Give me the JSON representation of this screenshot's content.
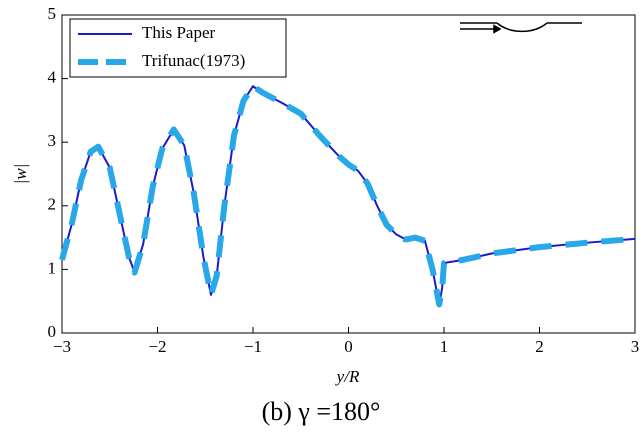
{
  "chart_data": {
    "type": "line",
    "title": "(b)  γ =180°",
    "xlabel": "y/R",
    "ylabel": "|w|",
    "x": [
      -3,
      -2.9,
      -2.8,
      -2.7,
      -2.62,
      -2.5,
      -2.4,
      -2.3,
      -2.24,
      -2.15,
      -2.05,
      -1.95,
      -1.83,
      -1.72,
      -1.62,
      -1.52,
      -1.44,
      -1.38,
      -1.3,
      -1.2,
      -1.1,
      -1.0,
      -0.9,
      -0.7,
      -0.5,
      -0.3,
      -0.1,
      0,
      0.1,
      0.2,
      0.3,
      0.4,
      0.5,
      0.6,
      0.7,
      0.8,
      0.88,
      0.95,
      0.98,
      1.0,
      1.2,
      1.5,
      2.0,
      2.5,
      3.0
    ],
    "series": [
      {
        "name": "This Paper",
        "color": "#1a1ad0",
        "linestyle": "solid",
        "values": [
          1.15,
          1.7,
          2.4,
          2.85,
          2.93,
          2.6,
          1.9,
          1.2,
          0.95,
          1.4,
          2.3,
          2.9,
          3.2,
          2.95,
          2.2,
          1.2,
          0.6,
          0.9,
          2.0,
          3.1,
          3.65,
          3.88,
          3.78,
          3.62,
          3.45,
          3.1,
          2.78,
          2.65,
          2.55,
          2.35,
          2.0,
          1.7,
          1.55,
          1.47,
          1.5,
          1.45,
          1.0,
          0.45,
          0.7,
          1.1,
          1.15,
          1.25,
          1.35,
          1.42,
          1.48
        ]
      },
      {
        "name": "Trifunac(1973)",
        "color": "#29a8e8",
        "linestyle": "dashed",
        "values": [
          1.15,
          1.7,
          2.4,
          2.85,
          2.93,
          2.6,
          1.9,
          1.2,
          0.95,
          1.4,
          2.3,
          2.9,
          3.2,
          2.95,
          2.2,
          1.2,
          0.6,
          0.9,
          2.0,
          3.1,
          3.65,
          3.88,
          3.78,
          3.62,
          3.45,
          3.1,
          2.78,
          2.65,
          2.55,
          2.35,
          2.0,
          1.7,
          1.55,
          1.47,
          1.5,
          1.45,
          1.0,
          0.45,
          0.7,
          1.1,
          1.15,
          1.25,
          1.35,
          1.42,
          1.48
        ]
      }
    ],
    "xlim": [
      -3,
      3
    ],
    "xticks": [
      {
        "value": -3,
        "label": "−3"
      },
      {
        "value": -2,
        "label": "−2"
      },
      {
        "value": -1,
        "label": "−1"
      },
      0,
      1,
      2,
      3
    ],
    "ylim": [
      0,
      5
    ],
    "yticks": [
      0,
      1,
      2,
      3,
      4,
      5
    ],
    "legend": "upper left"
  }
}
